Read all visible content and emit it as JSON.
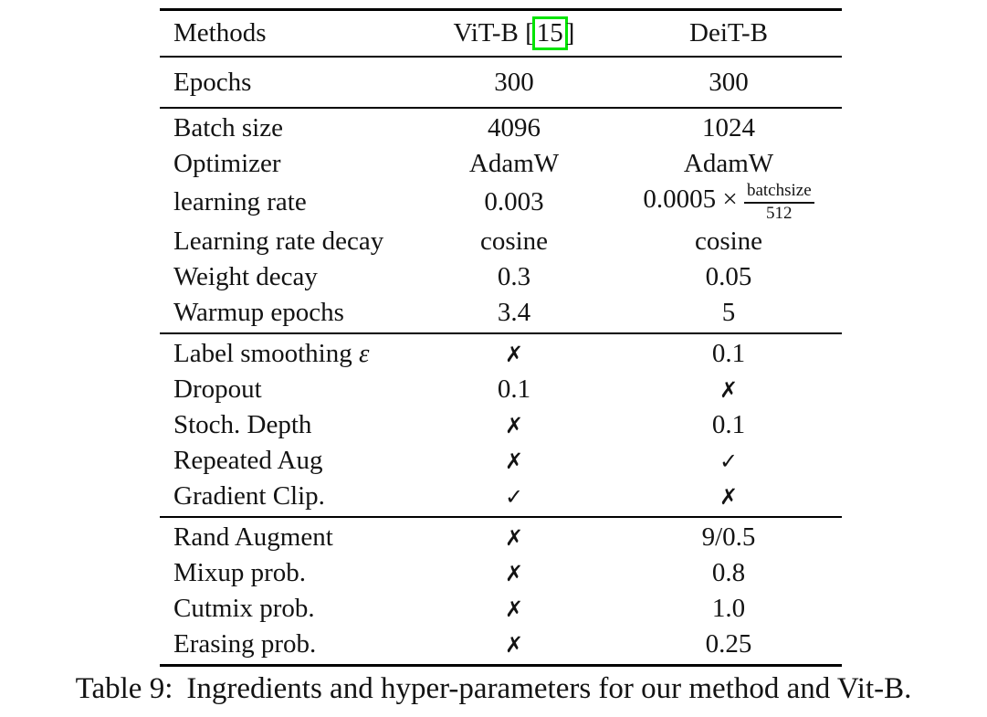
{
  "colors": {
    "cite_border": "#00e400",
    "text": "#131313",
    "background": "#ffffff"
  },
  "header": {
    "methods_label": "Methods",
    "vit_label_pre": "ViT-B [",
    "vit_cite": "15",
    "vit_label_post": "]",
    "deit_label": "DeiT-B"
  },
  "sections": [
    {
      "rows": [
        {
          "label": "Epochs",
          "vit": "300",
          "deit": "300"
        }
      ]
    },
    {
      "rows": [
        {
          "label": "Batch size",
          "vit": "4096",
          "deit": "1024"
        },
        {
          "label": "Optimizer",
          "vit": "AdamW",
          "deit": "AdamW"
        },
        {
          "label": "learning rate",
          "vit": "0.003",
          "deit_math": {
            "prefix": "0.0005 ×",
            "numerator": "batchsize",
            "denominator": "512"
          }
        },
        {
          "label": "Learning rate decay",
          "vit": "cosine",
          "deit": "cosine"
        },
        {
          "label": "Weight decay",
          "vit": "0.3",
          "deit": "0.05"
        },
        {
          "label": "Warmup epochs",
          "vit": "3.4",
          "deit": "5"
        }
      ]
    },
    {
      "rows": [
        {
          "label": "Label smoothing",
          "label_math": "ε",
          "vit": "✗",
          "deit": "0.1"
        },
        {
          "label": "Dropout",
          "vit": "0.1",
          "deit": "✗"
        },
        {
          "label": "Stoch. Depth",
          "vit": "✗",
          "deit": "0.1"
        },
        {
          "label": "Repeated Aug",
          "vit": "✗",
          "deit": "✓"
        },
        {
          "label": "Gradient Clip.",
          "vit": "✓",
          "deit": "✗"
        }
      ]
    },
    {
      "rows": [
        {
          "label": "Rand Augment",
          "vit": "✗",
          "deit": "9/0.5"
        },
        {
          "label": "Mixup prob.",
          "vit": "✗",
          "deit": "0.8"
        },
        {
          "label": "Cutmix prob.",
          "vit": "✗",
          "deit": "1.0"
        },
        {
          "label": "Erasing prob.",
          "vit": "✗",
          "deit": "0.25"
        }
      ]
    }
  ],
  "caption": {
    "tag": "Table 9:",
    "text": "Ingredients and hyper-parameters for our method and Vit-B."
  }
}
